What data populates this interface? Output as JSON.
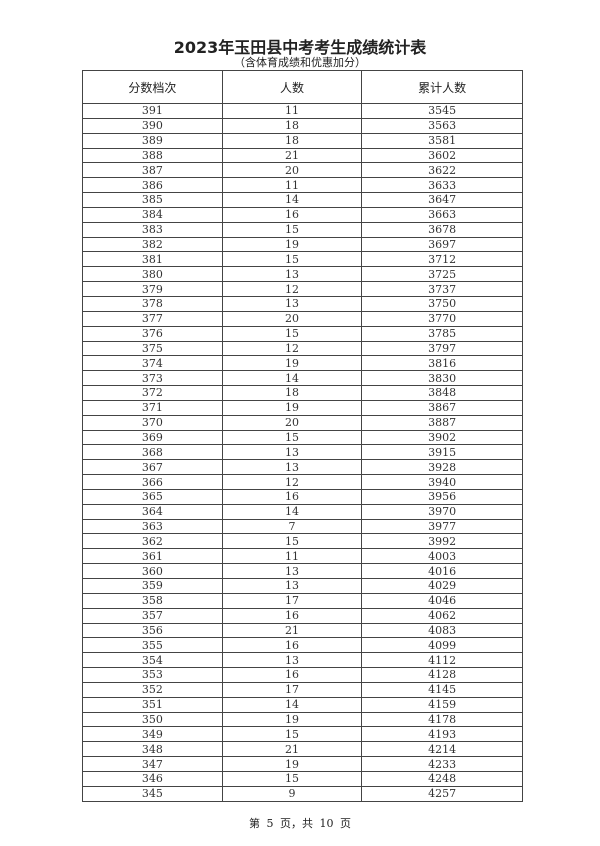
{
  "title": "2023年玉田县中考考生成绩统计表",
  "subtitle": "（含体育成绩和优惠加分）",
  "table": {
    "headers": [
      "分数档次",
      "人数",
      "累计人数"
    ],
    "rows": [
      [
        "391",
        "11",
        "3545"
      ],
      [
        "390",
        "18",
        "3563"
      ],
      [
        "389",
        "18",
        "3581"
      ],
      [
        "388",
        "21",
        "3602"
      ],
      [
        "387",
        "20",
        "3622"
      ],
      [
        "386",
        "11",
        "3633"
      ],
      [
        "385",
        "14",
        "3647"
      ],
      [
        "384",
        "16",
        "3663"
      ],
      [
        "383",
        "15",
        "3678"
      ],
      [
        "382",
        "19",
        "3697"
      ],
      [
        "381",
        "15",
        "3712"
      ],
      [
        "380",
        "13",
        "3725"
      ],
      [
        "379",
        "12",
        "3737"
      ],
      [
        "378",
        "13",
        "3750"
      ],
      [
        "377",
        "20",
        "3770"
      ],
      [
        "376",
        "15",
        "3785"
      ],
      [
        "375",
        "12",
        "3797"
      ],
      [
        "374",
        "19",
        "3816"
      ],
      [
        "373",
        "14",
        "3830"
      ],
      [
        "372",
        "18",
        "3848"
      ],
      [
        "371",
        "19",
        "3867"
      ],
      [
        "370",
        "20",
        "3887"
      ],
      [
        "369",
        "15",
        "3902"
      ],
      [
        "368",
        "13",
        "3915"
      ],
      [
        "367",
        "13",
        "3928"
      ],
      [
        "366",
        "12",
        "3940"
      ],
      [
        "365",
        "16",
        "3956"
      ],
      [
        "364",
        "14",
        "3970"
      ],
      [
        "363",
        "7",
        "3977"
      ],
      [
        "362",
        "15",
        "3992"
      ],
      [
        "361",
        "11",
        "4003"
      ],
      [
        "360",
        "13",
        "4016"
      ],
      [
        "359",
        "13",
        "4029"
      ],
      [
        "358",
        "17",
        "4046"
      ],
      [
        "357",
        "16",
        "4062"
      ],
      [
        "356",
        "21",
        "4083"
      ],
      [
        "355",
        "16",
        "4099"
      ],
      [
        "354",
        "13",
        "4112"
      ],
      [
        "353",
        "16",
        "4128"
      ],
      [
        "352",
        "17",
        "4145"
      ],
      [
        "351",
        "14",
        "4159"
      ],
      [
        "350",
        "19",
        "4178"
      ],
      [
        "349",
        "15",
        "4193"
      ],
      [
        "348",
        "21",
        "4214"
      ],
      [
        "347",
        "19",
        "4233"
      ],
      [
        "346",
        "15",
        "4248"
      ],
      [
        "345",
        "9",
        "4257"
      ]
    ]
  },
  "footer": "第 5 页，共 10 页"
}
